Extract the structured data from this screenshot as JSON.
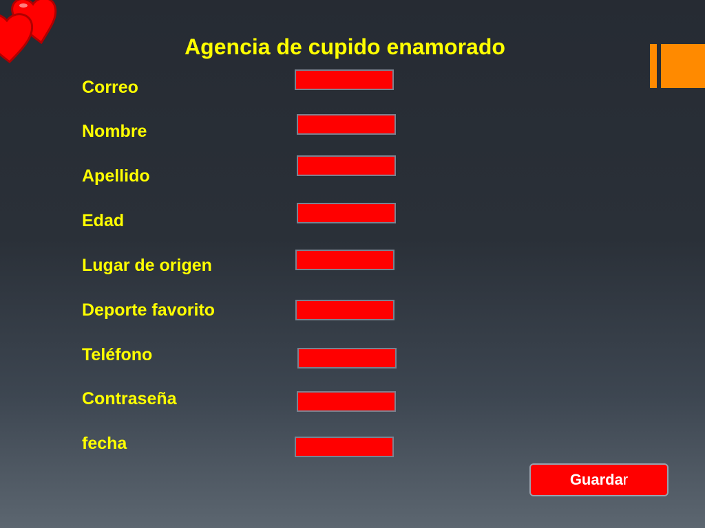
{
  "page": {
    "title": "Agencia de cupido enamorado"
  },
  "decoration": {
    "hearts_icon": "hearts-icon",
    "heart_color": "#ff0000",
    "orange_accent": "#ff8a00"
  },
  "form": {
    "fields": [
      {
        "label": "Correo",
        "value": ""
      },
      {
        "label": "Nombre",
        "value": ""
      },
      {
        "label": "Apellido",
        "value": ""
      },
      {
        "label": "Edad",
        "value": ""
      },
      {
        "label": "Lugar de origen",
        "value": ""
      },
      {
        "label": "Deporte favorito",
        "value": ""
      },
      {
        "label": "Teléfono",
        "value": ""
      },
      {
        "label": "Contraseña",
        "value": ""
      },
      {
        "label": "fecha",
        "value": ""
      }
    ],
    "field_color": "#ff0000",
    "label_color": "#ffff00"
  },
  "actions": {
    "save_label_main": "Guarda",
    "save_label_last": "r"
  }
}
